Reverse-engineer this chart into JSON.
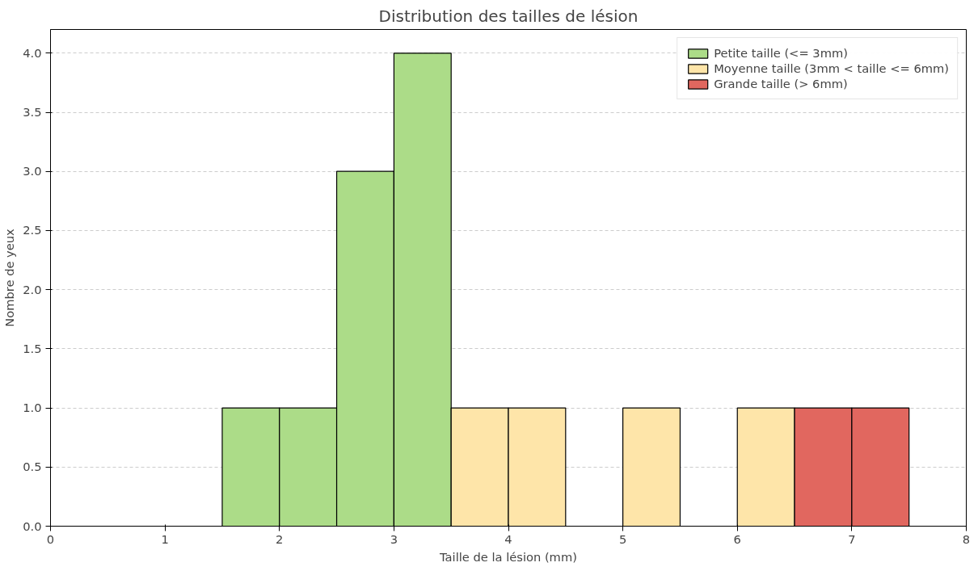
{
  "chart_data": {
    "type": "histogram",
    "title": "Distribution des tailles de lésion",
    "xlabel": "Taille de la lésion (mm)",
    "ylabel": "Nombre de yeux",
    "bins": [
      1.5,
      2.0,
      2.5,
      3.0,
      3.5,
      4.0,
      4.5,
      5.0,
      5.5,
      6.0,
      6.5,
      7.0,
      7.5
    ],
    "series": [
      {
        "name": "Petite taille (<= 3mm)",
        "color": "#acdc88",
        "values": [
          1,
          1,
          3,
          4,
          null,
          null,
          null,
          null,
          null,
          null,
          null,
          null
        ]
      },
      {
        "name": "Moyenne taille (3mm < taille <= 6mm)",
        "color": "#fee5a9",
        "values": [
          null,
          null,
          null,
          null,
          1,
          1,
          null,
          1,
          null,
          1,
          null,
          null
        ]
      },
      {
        "name": "Grande taille (> 6mm)",
        "color": "#e1675f",
        "values": [
          null,
          null,
          null,
          null,
          null,
          null,
          null,
          null,
          null,
          null,
          1,
          1
        ]
      }
    ],
    "xlim": [
      0,
      8
    ],
    "xticks": [
      0,
      1,
      2,
      3,
      4,
      5,
      6,
      7,
      8
    ],
    "ylim": [
      0,
      4.2
    ],
    "yticks": [
      {
        "value": 0,
        "label": "0.0"
      },
      {
        "value": 0.5,
        "label": "0.5"
      },
      {
        "value": 1,
        "label": "1.0"
      },
      {
        "value": 1.5,
        "label": "1.5"
      },
      {
        "value": 2,
        "label": "2.0"
      },
      {
        "value": 2.5,
        "label": "2.5"
      },
      {
        "value": 3,
        "label": "3.0"
      },
      {
        "value": 3.5,
        "label": "3.5"
      },
      {
        "value": 4,
        "label": "4.0"
      }
    ],
    "grid": "y",
    "legend": "top right"
  }
}
